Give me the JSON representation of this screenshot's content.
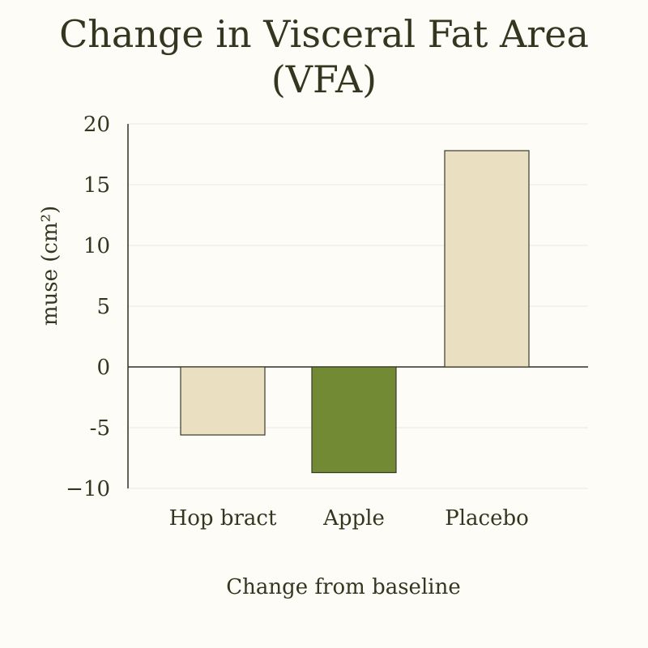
{
  "chart_data": {
    "type": "bar",
    "title_lines": [
      "Change in Visceral Fat Area",
      "(VFA)"
    ],
    "ylabel": "muse (cm²)",
    "xlabel": "Change from baseline",
    "categories": [
      "Hop bract",
      "Apple",
      "Placebo"
    ],
    "values": [
      -5.6,
      -8.7,
      17.8
    ],
    "bar_colors": [
      "#ebdfc2",
      "#728a33",
      "#ebdfc2"
    ],
    "bar_stroke": "#3a3a2a",
    "ylim": [
      -10,
      20
    ],
    "yticks": [
      20,
      15,
      10,
      5,
      0,
      -5,
      -10
    ],
    "ytick_labels": [
      "20",
      "15",
      "10",
      "5",
      "0",
      "-5",
      "−10"
    ],
    "grid": true,
    "gridline_color": "#ece9dc",
    "legend": "none"
  }
}
